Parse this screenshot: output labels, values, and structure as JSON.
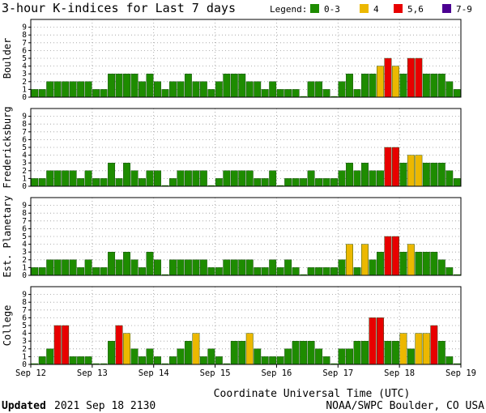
{
  "chart_data": {
    "type": "bar",
    "title": "3-hour K-indices for Last 7 days",
    "legend": {
      "title": "Legend:",
      "items": [
        {
          "label": "0-3",
          "color": "#1e8c00"
        },
        {
          "label": "4",
          "color": "#ecb800"
        },
        {
          "label": "5,6",
          "color": "#e80000"
        },
        {
          "label": "7-9",
          "color": "#4b0091"
        }
      ]
    },
    "xlabel": "Coordinate Universal Time (UTC)",
    "x_ticks": [
      "Sep 12",
      "Sep 13",
      "Sep 14",
      "Sep 15",
      "Sep 16",
      "Sep 17",
      "Sep 18",
      "Sep 19"
    ],
    "ylim": [
      0,
      9
    ],
    "y_ticks": [
      0,
      1,
      2,
      3,
      4,
      5,
      6,
      7,
      8,
      9
    ],
    "grid": true,
    "bar_interval": "3 hours",
    "panels": [
      {
        "name": "Boulder",
        "values": [
          1,
          1,
          2,
          2,
          2,
          2,
          2,
          2,
          1,
          1,
          3,
          3,
          3,
          3,
          2,
          3,
          2,
          1,
          2,
          2,
          3,
          2,
          2,
          1,
          2,
          3,
          3,
          3,
          2,
          2,
          1,
          2,
          1,
          1,
          1,
          0,
          2,
          2,
          1,
          0,
          2,
          3,
          1,
          3,
          3,
          4,
          5,
          4,
          3,
          5,
          5,
          3,
          3,
          3,
          2,
          1,
          0
        ]
      },
      {
        "name": "Fredericksburg",
        "values": [
          1,
          1,
          2,
          2,
          2,
          2,
          1,
          2,
          1,
          1,
          3,
          1,
          3,
          2,
          1,
          2,
          2,
          0,
          1,
          2,
          2,
          2,
          2,
          0,
          1,
          2,
          2,
          2,
          2,
          1,
          1,
          2,
          0,
          1,
          1,
          1,
          2,
          1,
          1,
          1,
          2,
          3,
          2,
          3,
          2,
          2,
          5,
          5,
          3,
          4,
          4,
          3,
          3,
          3,
          2,
          1,
          0
        ]
      },
      {
        "name": "Est. Planetary",
        "values": [
          1,
          1,
          2,
          2,
          2,
          2,
          1,
          2,
          1,
          1,
          3,
          2,
          3,
          2,
          1,
          3,
          2,
          0,
          2,
          2,
          2,
          2,
          2,
          1,
          1,
          2,
          2,
          2,
          2,
          1,
          1,
          2,
          1,
          2,
          1,
          0,
          1,
          1,
          1,
          1,
          2,
          4,
          1,
          4,
          2,
          3,
          5,
          5,
          3,
          4,
          3,
          3,
          3,
          2,
          1,
          0,
          0
        ]
      },
      {
        "name": "College",
        "values": [
          0,
          1,
          2,
          5,
          5,
          1,
          1,
          1,
          0,
          0,
          3,
          5,
          4,
          2,
          1,
          2,
          1,
          0,
          1,
          2,
          3,
          4,
          1,
          2,
          1,
          0,
          3,
          3,
          4,
          2,
          1,
          1,
          1,
          2,
          3,
          3,
          3,
          2,
          1,
          0,
          2,
          2,
          3,
          3,
          6,
          6,
          3,
          3,
          4,
          2,
          4,
          4,
          5,
          3,
          1,
          0,
          0
        ]
      }
    ]
  },
  "footer": {
    "updated_label": "Updated",
    "updated_value": "2021 Sep 18 2130",
    "source": "NOAA/SWPC Boulder, CO USA"
  }
}
